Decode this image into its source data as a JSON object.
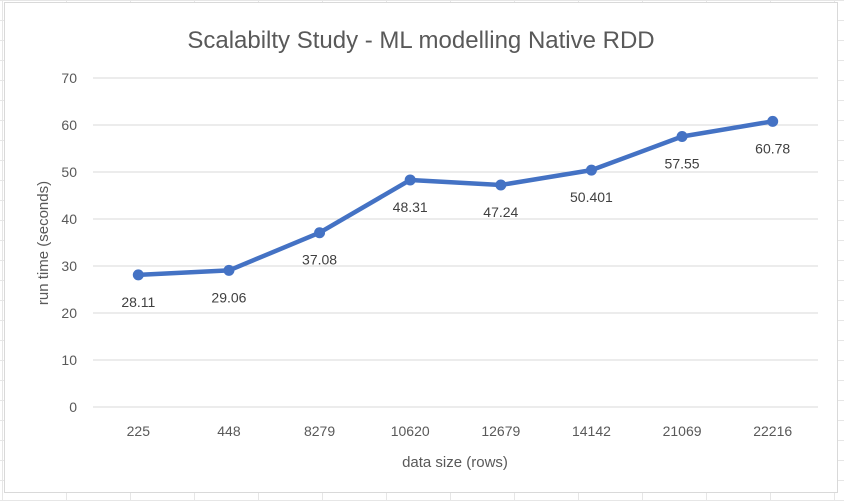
{
  "chart_data": {
    "type": "line",
    "title": "Scalabilty Study - ML modelling Native RDD",
    "xlabel": "data size (rows)",
    "ylabel": "run time (seconds)",
    "categories": [
      "225",
      "448",
      "8279",
      "10620",
      "12679",
      "14142",
      "21069",
      "22216"
    ],
    "series": [
      {
        "values": [
          28.11,
          29.06,
          37.08,
          48.31,
          47.24,
          50.401,
          57.55,
          60.78
        ],
        "labels": [
          "28.11",
          "29.06",
          "37.08",
          "48.31",
          "47.24",
          "50.401",
          "57.55",
          "60.78"
        ]
      }
    ],
    "ylim": [
      0,
      70
    ],
    "yticks": [
      "0",
      "10",
      "20",
      "30",
      "40",
      "50",
      "60",
      "70"
    ],
    "grid": true,
    "legend": "none",
    "line_color": "#4472c4",
    "grid_color": "#d9d9d9"
  }
}
